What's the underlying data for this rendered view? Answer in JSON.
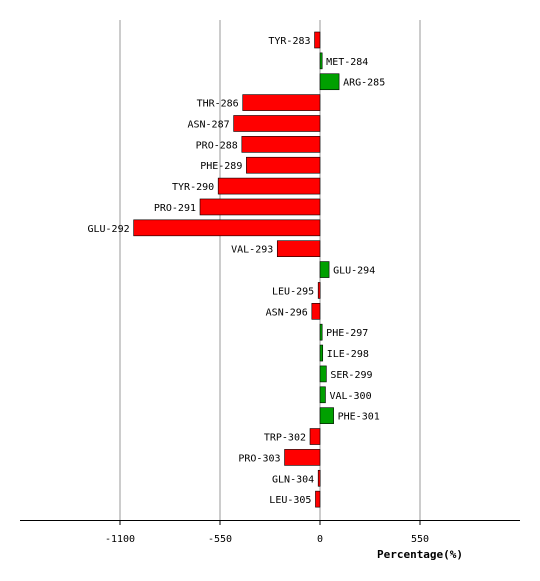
{
  "chart_data": {
    "type": "bar",
    "orientation": "horizontal",
    "xlabel": "Percentage(%)",
    "xlim": [
      -1650,
      1100
    ],
    "xticks": [
      -1100,
      -550,
      0,
      550
    ],
    "xtick_labels": [
      "-1100",
      "-550",
      "0",
      "550"
    ],
    "grid": "vertical",
    "legend": "none",
    "colors": {
      "negative": "#ff0000",
      "positive": "#00a000",
      "border": "#000000",
      "grid": "#999999"
    },
    "categories": [
      "TYR-283",
      "MET-284",
      "ARG-285",
      "THR-286",
      "ASN-287",
      "PRO-288",
      "PHE-289",
      "TYR-290",
      "PRO-291",
      "GLU-292",
      "VAL-293",
      "GLU-294",
      "LEU-295",
      "ASN-296",
      "PHE-297",
      "ILE-298",
      "SER-299",
      "VAL-300",
      "PHE-301",
      "TRP-302",
      "PRO-303",
      "GLN-304",
      "LEU-305"
    ],
    "values": [
      -30,
      12,
      105,
      -425,
      -475,
      -430,
      -405,
      -560,
      -660,
      -1025,
      -235,
      50,
      -10,
      -45,
      12,
      15,
      35,
      30,
      75,
      -55,
      -195,
      -10,
      -25
    ]
  }
}
